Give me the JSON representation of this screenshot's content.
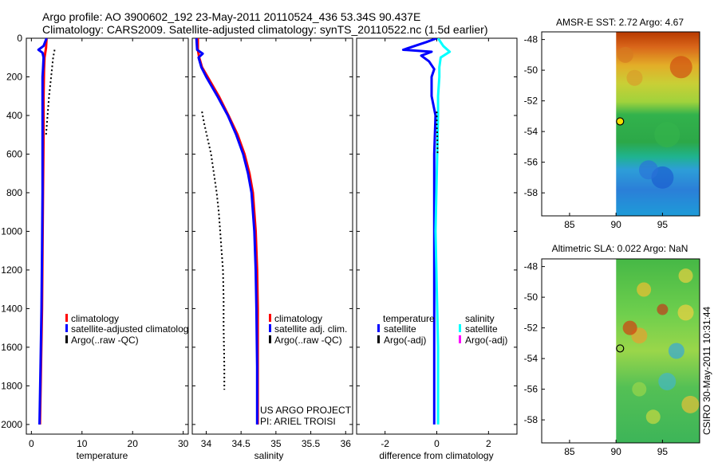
{
  "header": {
    "line1": "Argo profile: AO 3900602_192 23-May-2011 20110524_436 53.34S 90.437E",
    "line2": "Climatology: CARS2009. Satellite-adjusted climatology: synTS_20110522.nc (1.5d earlier)"
  },
  "stamp": "CSIRO 30-May-2011 10:31:44",
  "colors": {
    "red": "#ff0000",
    "blue": "#0000ff",
    "cyan": "#00ffff",
    "magenta": "#ff00ff",
    "black": "#000000"
  },
  "chart_data": [
    {
      "type": "line",
      "id": "temperature",
      "xlabel": "temperature",
      "xlim": [
        -1,
        31
      ],
      "ylim": [
        2050,
        0
      ],
      "xticks": [
        0,
        10,
        20,
        30
      ],
      "yticks": [
        0,
        200,
        400,
        600,
        800,
        1000,
        1200,
        1400,
        1600,
        1800,
        2000
      ],
      "legend": [
        "climatology",
        "satellite-adjusted climatology",
        "Argo(..raw -QC)"
      ],
      "series": [
        {
          "name": "climatology",
          "color": "red",
          "style": "solid",
          "points": [
            [
              3.0,
              0
            ],
            [
              2.9,
              50
            ],
            [
              2.6,
              100
            ],
            [
              2.5,
              160
            ],
            [
              2.4,
              300
            ],
            [
              2.4,
              500
            ],
            [
              2.3,
              800
            ],
            [
              2.2,
              1100
            ],
            [
              2.1,
              1400
            ],
            [
              1.9,
              1700
            ],
            [
              1.7,
              2000
            ]
          ]
        },
        {
          "name": "satellite-adjusted climatology",
          "color": "blue",
          "style": "solid",
          "points": [
            [
              3.0,
              0
            ],
            [
              2.4,
              40
            ],
            [
              1.4,
              60
            ],
            [
              2.2,
              75
            ],
            [
              2.4,
              100
            ],
            [
              2.3,
              160
            ],
            [
              2.2,
              200
            ],
            [
              2.2,
              300
            ],
            [
              2.2,
              500
            ],
            [
              2.2,
              800
            ],
            [
              2.1,
              1100
            ],
            [
              2.0,
              1400
            ],
            [
              1.8,
              1700
            ],
            [
              1.6,
              2000
            ]
          ]
        },
        {
          "name": "Argo(..raw -QC)",
          "color": "black",
          "style": "dotted",
          "points": [
            [
              4.6,
              60
            ],
            [
              4.3,
              100
            ],
            [
              3.9,
              200
            ],
            [
              3.5,
              300
            ],
            [
              3.2,
              400
            ],
            [
              2.9,
              500
            ]
          ]
        }
      ]
    },
    {
      "type": "line",
      "id": "salinity",
      "xlabel": "salinity",
      "xlim": [
        33.8,
        36.1
      ],
      "ylim": [
        2050,
        0
      ],
      "xticks": [
        34,
        34.5,
        35,
        35.5,
        36
      ],
      "legend": [
        "climatology",
        "satellite adj. clim.",
        "Argo(..raw -QC)"
      ],
      "annotation": [
        "US ARGO PROJECT",
        "PI: ARIEL TROISI"
      ],
      "series": [
        {
          "name": "climatology",
          "color": "red",
          "style": "solid",
          "points": [
            [
              33.88,
              0
            ],
            [
              33.88,
              60
            ],
            [
              33.9,
              100
            ],
            [
              33.94,
              150
            ],
            [
              34.02,
              200
            ],
            [
              34.18,
              300
            ],
            [
              34.32,
              400
            ],
            [
              34.45,
              500
            ],
            [
              34.55,
              600
            ],
            [
              34.62,
              700
            ],
            [
              34.67,
              800
            ],
            [
              34.71,
              1000
            ],
            [
              34.73,
              1200
            ],
            [
              34.74,
              1400
            ],
            [
              34.74,
              1700
            ],
            [
              34.74,
              2000
            ]
          ]
        },
        {
          "name": "satellite adj. clim.",
          "color": "blue",
          "style": "solid",
          "points": [
            [
              33.86,
              0
            ],
            [
              33.87,
              60
            ],
            [
              33.95,
              80
            ],
            [
              33.89,
              100
            ],
            [
              33.93,
              150
            ],
            [
              34.0,
              200
            ],
            [
              34.16,
              300
            ],
            [
              34.31,
              400
            ],
            [
              34.43,
              500
            ],
            [
              34.53,
              600
            ],
            [
              34.6,
              700
            ],
            [
              34.65,
              800
            ],
            [
              34.69,
              1000
            ],
            [
              34.71,
              1200
            ],
            [
              34.72,
              1400
            ],
            [
              34.73,
              1700
            ],
            [
              34.73,
              2000
            ]
          ]
        },
        {
          "name": "Argo(..raw -QC)",
          "color": "black",
          "style": "dotted",
          "points": [
            [
              33.94,
              380
            ],
            [
              33.97,
              440
            ],
            [
              34.02,
              520
            ],
            [
              34.07,
              600
            ],
            [
              34.11,
              700
            ],
            [
              34.15,
              800
            ],
            [
              34.18,
              900
            ],
            [
              34.2,
              1000
            ],
            [
              34.22,
              1100
            ],
            [
              34.24,
              1200
            ],
            [
              34.25,
              1350
            ],
            [
              34.25,
              1500
            ],
            [
              34.26,
              1700
            ],
            [
              34.26,
              1820
            ]
          ]
        }
      ]
    },
    {
      "type": "line",
      "id": "difference",
      "xlabel": "difference from climatology",
      "xlim": [
        -3.1,
        3.1
      ],
      "ylim": [
        2050,
        0
      ],
      "xticks": [
        -2,
        0,
        2
      ],
      "legend_groups": [
        {
          "title": "temperature",
          "items": [
            "satellite",
            "Argo(-adj)"
          ]
        },
        {
          "title": "salinity",
          "items": [
            "satellite",
            "Argo(-adj)"
          ]
        }
      ],
      "series": [
        {
          "name": "temperature satellite",
          "color": "blue",
          "style": "solid",
          "points": [
            [
              0.0,
              0
            ],
            [
              -0.4,
              20
            ],
            [
              -1.3,
              60
            ],
            [
              -0.2,
              70
            ],
            [
              -0.6,
              90
            ],
            [
              -0.3,
              120
            ],
            [
              -0.1,
              160
            ],
            [
              -0.2,
              200
            ],
            [
              -0.2,
              300
            ],
            [
              -0.05,
              400
            ],
            [
              -0.1,
              600
            ],
            [
              -0.1,
              900
            ],
            [
              -0.1,
              1200
            ],
            [
              -0.1,
              1500
            ],
            [
              -0.1,
              1800
            ],
            [
              -0.1,
              2000
            ]
          ]
        },
        {
          "name": "salinity satellite",
          "color": "cyan",
          "style": "solid",
          "points": [
            [
              0.05,
              0
            ],
            [
              0.25,
              40
            ],
            [
              0.5,
              70
            ],
            [
              0.15,
              100
            ],
            [
              0.1,
              150
            ],
            [
              0.1,
              200
            ],
            [
              0.05,
              300
            ],
            [
              0.05,
              400
            ],
            [
              0.0,
              700
            ],
            [
              -0.05,
              1000
            ],
            [
              0.0,
              1300
            ],
            [
              0.05,
              1600
            ],
            [
              0.05,
              1900
            ],
            [
              0.05,
              2000
            ]
          ]
        },
        {
          "name": "salinity Argo(-adj)",
          "color": "black",
          "style": "dotted",
          "points": [
            [
              0.0,
              380
            ],
            [
              0.0,
              450
            ],
            [
              0.02,
              500
            ],
            [
              0.03,
              600
            ]
          ]
        }
      ]
    },
    {
      "type": "heatmap",
      "id": "sst-map",
      "title": "AMSR-E SST: 2.72 Argo: 4.67",
      "xlim": [
        82,
        99
      ],
      "ylim": [
        -59.5,
        -47.5
      ],
      "xticks": [
        85,
        90,
        95
      ],
      "yticks": [
        -48,
        -50,
        -52,
        -54,
        -56,
        -58
      ],
      "data_xmin": 90,
      "marker": {
        "lon": 90.437,
        "lat": -53.34,
        "filled": true
      }
    },
    {
      "type": "heatmap",
      "id": "sla-map",
      "title": "Altimetric SLA: 0.022 Argo: NaN",
      "xlim": [
        82,
        99
      ],
      "ylim": [
        -59.5,
        -47.5
      ],
      "xticks": [
        85,
        90,
        95
      ],
      "yticks": [
        -48,
        -50,
        -52,
        -54,
        -56,
        -58
      ],
      "data_xmin": 90,
      "marker": {
        "lon": 90.437,
        "lat": -53.34,
        "filled": false
      }
    }
  ]
}
